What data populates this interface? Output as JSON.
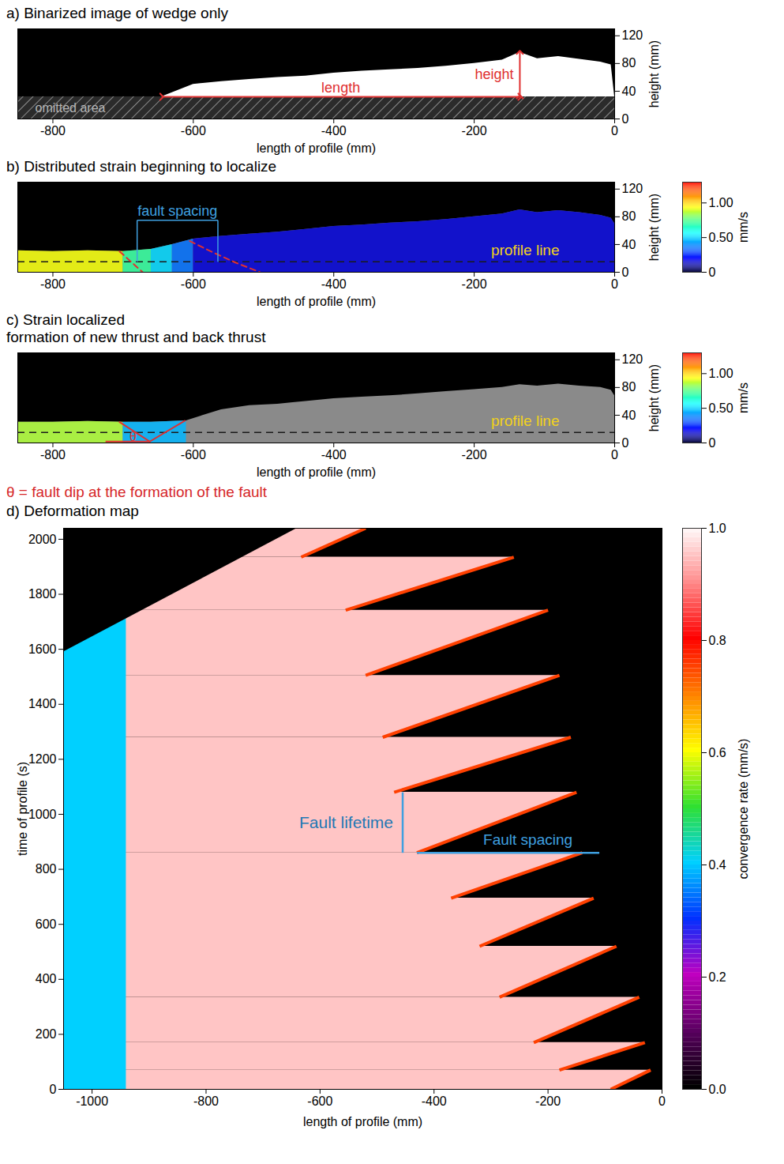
{
  "chart_data": [
    {
      "type": "area",
      "title": "a) Binarized image of wedge only",
      "x_label": "length of profile (mm)",
      "y_label": "height (mm)",
      "xlim": [
        -850,
        0
      ],
      "xticks": [
        -800,
        -600,
        -400,
        -200,
        0
      ],
      "ylim": [
        0,
        130
      ],
      "yticks": [
        0,
        40,
        80,
        120
      ],
      "x": [
        -645,
        -600,
        -560,
        -520,
        -480,
        -440,
        -400,
        -360,
        -320,
        -280,
        -240,
        -200,
        -160,
        -135,
        -110,
        -80,
        -50,
        -20,
        -5,
        0
      ],
      "values": [
        32,
        50,
        54,
        57,
        60,
        62,
        66,
        69,
        71,
        73,
        76,
        80,
        85,
        96,
        87,
        90,
        86,
        82,
        78,
        32
      ],
      "color": "#ffffff",
      "omitted_area": {
        "label": "omitted area",
        "ylim": [
          0,
          32
        ]
      },
      "annotations": [
        {
          "text": "length",
          "x1": -645,
          "x2": -135,
          "y1": 32,
          "y2": 32
        },
        {
          "text": "height",
          "x1": -135,
          "x2": -135,
          "y1": 32,
          "y2": 96
        }
      ]
    },
    {
      "type": "area",
      "title": "b) Distributed strain beginning to localize",
      "x_label": "length of profile (mm)",
      "y_label": "height (mm)",
      "xlim": [
        -850,
        0
      ],
      "xticks": [
        -800,
        -600,
        -400,
        -200,
        0
      ],
      "ylim": [
        0,
        130
      ],
      "yticks": [
        0,
        40,
        80,
        120
      ],
      "x": [
        -850,
        -800,
        -750,
        -700,
        -660,
        -630,
        -600,
        -560,
        -520,
        -480,
        -440,
        -400,
        -360,
        -320,
        -280,
        -240,
        -200,
        -160,
        -135,
        -110,
        -80,
        -50,
        -20,
        -5,
        0
      ],
      "values": [
        31,
        30,
        31,
        30,
        33,
        40,
        48,
        52,
        55,
        58,
        62,
        66,
        68,
        71,
        73,
        76,
        80,
        84,
        90,
        86,
        89,
        86,
        82,
        78,
        70
      ],
      "color": "#7a7a7a",
      "velocity": [
        {
          "x1": -850,
          "x2": -700,
          "value": 0.92
        },
        {
          "x1": -700,
          "x2": -660,
          "value": 0.7
        },
        {
          "x1": -660,
          "x2": -630,
          "value": 0.5
        },
        {
          "x1": -630,
          "x2": -600,
          "value": 0.35
        },
        {
          "x1": -600,
          "x2": 0,
          "value": 0.15
        }
      ],
      "colorbar": {
        "label": "mm/s",
        "lim": [
          0,
          1.3
        ],
        "ticks": [
          0,
          {
            "value": 0.5,
            "label": "0.50"
          },
          {
            "value": 1,
            "label": "1.00"
          }
        ]
      },
      "profile_line": {
        "label": "profile line",
        "y": 15
      },
      "faults": [
        {
          "x": [
            -705,
            -672
          ],
          "y": [
            30,
            0
          ]
        },
        {
          "x": [
            -605,
            -575,
            -540,
            -505
          ],
          "y": [
            45,
            30,
            14,
            0
          ]
        }
      ],
      "fault_spacing": {
        "text": "fault spacing",
        "x1": -680,
        "x2": -565,
        "y": 75
      }
    },
    {
      "type": "area",
      "title": "c) Strain localized",
      "subtitle": "formation of new thrust and back thrust",
      "caption": "θ = fault dip at the formation of the fault",
      "x_label": "length of profile (mm)",
      "y_label": "height (mm)",
      "xlim": [
        -850,
        0
      ],
      "xticks": [
        -800,
        -600,
        -400,
        -200,
        0
      ],
      "ylim": [
        0,
        130
      ],
      "yticks": [
        0,
        40,
        80,
        120
      ],
      "x": [
        -850,
        -800,
        -750,
        -700,
        -660,
        -610,
        -560,
        -520,
        -480,
        -440,
        -400,
        -360,
        -320,
        -280,
        -240,
        -200,
        -160,
        -135,
        -110,
        -80,
        -50,
        -20,
        -5,
        0
      ],
      "values": [
        30,
        30,
        31,
        30,
        30,
        32,
        48,
        54,
        56,
        60,
        64,
        66,
        68,
        71,
        74,
        77,
        80,
        84,
        82,
        85,
        82,
        80,
        76,
        68
      ],
      "color": "#8a8a8a",
      "velocity": [
        {
          "x1": -850,
          "x2": -700,
          "value": 0.85
        },
        {
          "x1": -700,
          "x2": -610,
          "value": 0.45
        }
      ],
      "colorbar": {
        "label": "mm/s",
        "lim": [
          0,
          1.3
        ],
        "ticks": [
          0,
          {
            "value": 0.5,
            "label": "0.50"
          },
          {
            "value": 1,
            "label": "1.00"
          }
        ]
      },
      "profile_line": {
        "label": "profile line",
        "y": 15
      },
      "faults": [
        {
          "x": [
            -705,
            -662
          ],
          "y": [
            30,
            2
          ]
        },
        {
          "x": [
            -662,
            -612
          ],
          "y": [
            2,
            32
          ]
        }
      ],
      "angle_marker": {
        "text": "θ",
        "x": -686,
        "y": 9,
        "base_x": [
          -725,
          -662
        ],
        "base_y": 2
      }
    },
    {
      "type": "heatmap",
      "title": "d) Deformation map",
      "x_label": "length of profile (mm)",
      "y_label": "time of profile (s)",
      "xlim": [
        -1050,
        0
      ],
      "xticks": [
        -1000,
        -800,
        -600,
        -400,
        -200,
        0
      ],
      "ylim": [
        0,
        2040
      ],
      "yticks": [
        0,
        200,
        400,
        600,
        800,
        1000,
        1200,
        1400,
        1600,
        1800,
        2000
      ],
      "faults": [
        {
          "x": [
            -90,
            -20
          ],
          "t": [
            0,
            70
          ]
        },
        {
          "x": [
            -180,
            -30
          ],
          "t": [
            70,
            170
          ]
        },
        {
          "x": [
            -225,
            -40
          ],
          "t": [
            170,
            335
          ]
        },
        {
          "x": [
            -285,
            -80
          ],
          "t": [
            335,
            520
          ]
        },
        {
          "x": [
            -320,
            -120
          ],
          "t": [
            520,
            695
          ]
        },
        {
          "x": [
            -370,
            -140
          ],
          "t": [
            695,
            860
          ]
        },
        {
          "x": [
            -430,
            -150
          ],
          "t": [
            860,
            1080
          ]
        },
        {
          "x": [
            -470,
            -160
          ],
          "t": [
            1080,
            1280
          ]
        },
        {
          "x": [
            -490,
            -180
          ],
          "t": [
            1280,
            1505
          ]
        },
        {
          "x": [
            -520,
            -200
          ],
          "t": [
            1505,
            1742
          ]
        },
        {
          "x": [
            -555,
            -260
          ],
          "t": [
            1742,
            1935
          ]
        },
        {
          "x": [
            -633,
            -520
          ],
          "t": [
            1935,
            2040
          ]
        }
      ],
      "wedge_rate": 0.95,
      "front_rate": 0.75,
      "noisy_zone": {
        "x": [
          -1050,
          -940
        ],
        "rate": 0.4
      },
      "boundary": {
        "x": [
          -1050,
          -640
        ],
        "t": [
          1590,
          2040
        ]
      },
      "colorbar": {
        "label": "convergence rate (mm/s)",
        "lim": [
          0,
          1
        ],
        "ticks": [
          {
            "value": 0,
            "label": "0.0"
          },
          {
            "value": 0.2,
            "label": "0.2"
          },
          {
            "value": 0.4,
            "label": "0.4"
          },
          {
            "value": 0.6,
            "label": "0.6"
          },
          {
            "value": 0.8,
            "label": "0.8"
          },
          {
            "value": 1,
            "label": "1.0"
          }
        ]
      },
      "annotations": [
        {
          "text": "Fault lifetime",
          "x": -455,
          "t": [
            860,
            1080
          ]
        },
        {
          "text": "Fault spacing",
          "t": 860,
          "x": [
            -430,
            -110
          ]
        }
      ]
    }
  ]
}
